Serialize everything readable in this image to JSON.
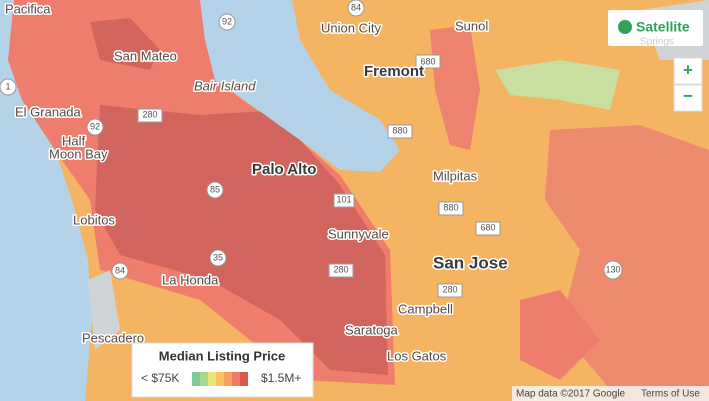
{
  "map": {
    "places": [
      "Pacifica",
      "San Mateo",
      "Union City",
      "Sunol",
      "Fremont",
      "Bair Island",
      "El Granada",
      "Half",
      "Moon Bay",
      "Palo Alto",
      "Milpitas",
      "Lobitos",
      "Sunnyvale",
      "San Jose",
      "La Honda",
      "Campbell",
      "Saratoga",
      "Los Gatos",
      "Pescadero",
      "Springs"
    ],
    "shields": [
      "92",
      "84",
      "1",
      "92",
      "280",
      "680",
      "880",
      "880",
      "101",
      "680",
      "84",
      "35",
      "280",
      "280",
      "130",
      "85"
    ]
  },
  "controls": {
    "satellite": "Satellite",
    "zoom_in": "+",
    "zoom_out": "−"
  },
  "legend": {
    "title": "Median Listing Price",
    "min": "< $75K",
    "max": "$1.5M+"
  },
  "attribution": {
    "map_data": "Map data ©2017 Google",
    "terms": "Terms of Use"
  }
}
